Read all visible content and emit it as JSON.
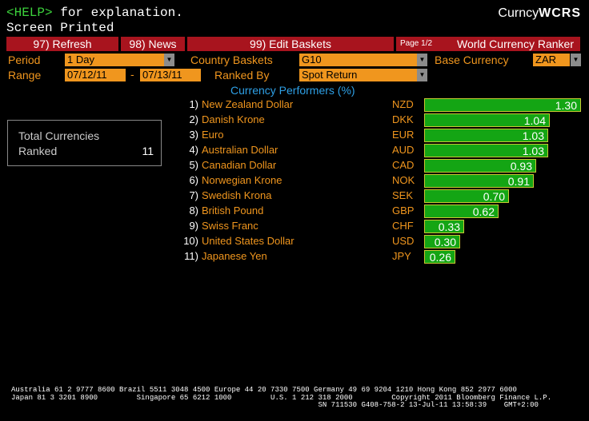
{
  "header": {
    "help_key": "<HELP>",
    "help_text": " for explanation.",
    "screen_printed": "Screen Printed",
    "app_name_prefix": "Curncy",
    "app_name_suffix": "WCRS"
  },
  "toolbar": {
    "refresh": "97) Refresh",
    "news": "98) News",
    "edit_baskets": "99) Edit Baskets",
    "page_indicator": "Page 1/2",
    "ranker_title": "World Currency Ranker"
  },
  "controls": {
    "period_label": "Period",
    "period_value": "1 Day",
    "country_baskets_label": "Country Baskets",
    "country_baskets_value": "G10",
    "base_currency_label": "Base Currency",
    "base_currency_value": "ZAR",
    "range_label": "Range",
    "range_start": "07/12/11",
    "range_sep": "-",
    "range_end": "07/13/11",
    "ranked_by_label": "Ranked By",
    "ranked_by_value": "Spot Return"
  },
  "section_title": "Currency Performers  (%)",
  "summary": {
    "label_line1": "Total Currencies",
    "label_line2": "Ranked",
    "value": "11"
  },
  "colors": {
    "accent_orange": "#f0961e",
    "toolbar_red": "#a8141e",
    "bar_green": "#14a514",
    "section_blue": "#2ea0e6"
  },
  "chart_data": {
    "type": "bar",
    "title": "Currency Performers  (%)",
    "categories": [
      "NZD",
      "DKK",
      "EUR",
      "AUD",
      "CAD",
      "NOK",
      "SEK",
      "GBP",
      "CHF",
      "USD",
      "JPY"
    ],
    "values": [
      1.3,
      1.04,
      1.03,
      1.03,
      0.93,
      0.91,
      0.7,
      0.62,
      0.33,
      0.3,
      0.26
    ]
  },
  "rows": [
    {
      "rank": "1)",
      "name": "New Zealand Dollar",
      "code": "NZD",
      "value": "1.30",
      "v": 1.3
    },
    {
      "rank": "2)",
      "name": "Danish Krone",
      "code": "DKK",
      "value": "1.04",
      "v": 1.04
    },
    {
      "rank": "3)",
      "name": "Euro",
      "code": "EUR",
      "value": "1.03",
      "v": 1.03
    },
    {
      "rank": "4)",
      "name": "Australian Dollar",
      "code": "AUD",
      "value": "1.03",
      "v": 1.03
    },
    {
      "rank": "5)",
      "name": "Canadian Dollar",
      "code": "CAD",
      "value": "0.93",
      "v": 0.93
    },
    {
      "rank": "6)",
      "name": "Norwegian Krone",
      "code": "NOK",
      "value": "0.91",
      "v": 0.91
    },
    {
      "rank": "7)",
      "name": "Swedish Krona",
      "code": "SEK",
      "value": "0.70",
      "v": 0.7
    },
    {
      "rank": "8)",
      "name": "British Pound",
      "code": "GBP",
      "value": "0.62",
      "v": 0.62
    },
    {
      "rank": "9)",
      "name": "Swiss Franc",
      "code": "CHF",
      "value": "0.33",
      "v": 0.33
    },
    {
      "rank": "10)",
      "name": "United States Dollar",
      "code": "USD",
      "value": "0.30",
      "v": 0.3
    },
    {
      "rank": "11)",
      "name": "Japanese Yen",
      "code": "JPY",
      "value": "0.26",
      "v": 0.26
    }
  ],
  "footer": {
    "line1": "Australia 61 2 9777 8600 Brazil 5511 3048 4500 Europe 44 20 7330 7500 Germany 49 69 9204 1210 Hong Kong 852 2977 6000",
    "line2": "Japan 81 3 3201 8900         Singapore 65 6212 1000         U.S. 1 212 318 2000         Copyright 2011 Bloomberg Finance L.P.",
    "line3": "                                                                       SN 711530 G408-758-2 13-Jul-11 13:58:39    GMT+2:00"
  }
}
